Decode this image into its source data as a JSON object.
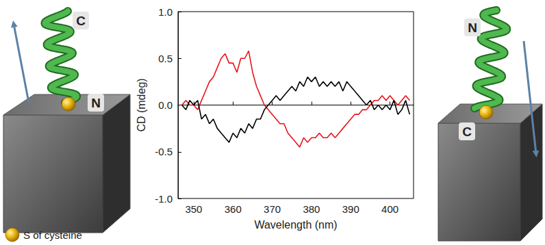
{
  "chart_data": {
    "type": "line",
    "x_label": "Wavelength (nm)",
    "y_label": "CD (mdeg)",
    "xlim": [
      346,
      406
    ],
    "xticks": [
      350,
      360,
      370,
      380,
      390,
      400
    ],
    "ylim": [
      -1,
      1
    ],
    "yticks": [
      {
        "value": -1,
        "label": "-1.0"
      },
      {
        "value": -0.5,
        "label": "-0.5"
      },
      {
        "value": 0,
        "label": "0.0"
      },
      {
        "value": 0.5,
        "label": "0.5"
      },
      {
        "value": 1,
        "label": "1.0"
      }
    ],
    "grid": false,
    "x": [
      347,
      348,
      349,
      350,
      351,
      352,
      353,
      354,
      355,
      356,
      357,
      358,
      359,
      360,
      361,
      362,
      363,
      364,
      365,
      366,
      367,
      368,
      369,
      370,
      371,
      372,
      373,
      374,
      375,
      376,
      377,
      378,
      379,
      380,
      381,
      382,
      383,
      384,
      385,
      386,
      387,
      388,
      389,
      390,
      391,
      392,
      393,
      394,
      395,
      396,
      397,
      398,
      399,
      400,
      401,
      402,
      403,
      404,
      405
    ],
    "series": [
      {
        "color": "#e8131b",
        "values": [
          0.0,
          0.05,
          0.0,
          0.0,
          -0.05,
          0.05,
          0.15,
          0.25,
          0.3,
          0.4,
          0.5,
          0.55,
          0.45,
          0.45,
          0.35,
          0.5,
          0.5,
          0.58,
          0.35,
          0.2,
          0.1,
          0.0,
          -0.05,
          -0.1,
          -0.15,
          -0.2,
          -0.2,
          -0.3,
          -0.35,
          -0.4,
          -0.45,
          -0.35,
          -0.4,
          -0.35,
          -0.35,
          -0.3,
          -0.35,
          -0.35,
          -0.3,
          -0.35,
          -0.3,
          -0.25,
          -0.2,
          -0.15,
          -0.1,
          -0.1,
          -0.05,
          -0.05,
          0.0,
          0.05,
          0.05,
          0.1,
          0.05,
          0.1,
          0.05,
          0.0,
          0.05,
          0.1,
          0.05
        ]
      },
      {
        "color": "#000000",
        "values": [
          0.0,
          -0.05,
          0.05,
          0.0,
          0.05,
          -0.15,
          -0.1,
          -0.2,
          -0.15,
          -0.25,
          -0.3,
          -0.35,
          -0.4,
          -0.3,
          -0.35,
          -0.25,
          -0.3,
          -0.2,
          -0.25,
          -0.15,
          -0.15,
          -0.05,
          0.0,
          0.05,
          0.1,
          0.05,
          0.1,
          0.15,
          0.2,
          0.15,
          0.25,
          0.2,
          0.3,
          0.25,
          0.3,
          0.2,
          0.25,
          0.2,
          0.25,
          0.2,
          0.25,
          0.15,
          0.25,
          0.2,
          0.15,
          0.1,
          0.05,
          0.0,
          0.05,
          -0.05,
          0.0,
          -0.05,
          0.0,
          -0.05,
          0.05,
          -0.1,
          -0.05,
          0.05,
          -0.1
        ]
      }
    ]
  },
  "diagrams": [
    {
      "top": "C",
      "bottom": "N"
    },
    {
      "top": "N",
      "bottom": "C"
    }
  ],
  "key": "S of cysteine"
}
